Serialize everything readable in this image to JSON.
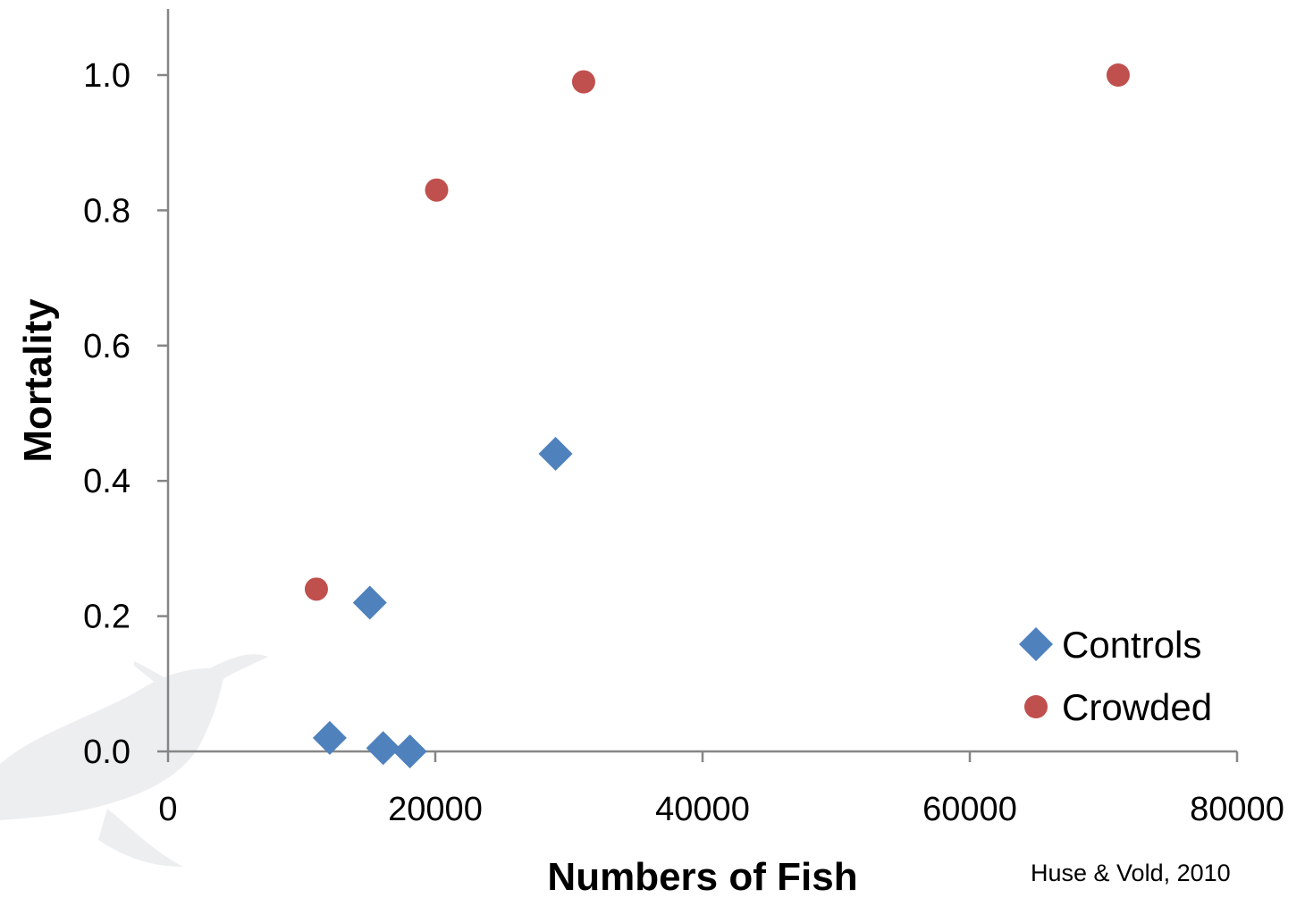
{
  "chart_data": {
    "type": "scatter",
    "title": "",
    "xlabel": "Numbers of Fish",
    "ylabel": "Mortality",
    "xlim": [
      0,
      80000
    ],
    "ylim": [
      0,
      1.1
    ],
    "x_ticks": [
      "0",
      "20000",
      "40000",
      "60000",
      "80000"
    ],
    "y_ticks": [
      "0.0",
      "0.2",
      "0.4",
      "0.6",
      "0.8",
      "1.0"
    ],
    "grid": false,
    "legend_position": "bottom-right",
    "series": [
      {
        "name": "Controls",
        "marker": "diamond",
        "color": "#4F81BD",
        "points": [
          {
            "x": 12100,
            "y": 0.02
          },
          {
            "x": 15100,
            "y": 0.22
          },
          {
            "x": 16100,
            "y": 0.005
          },
          {
            "x": 18100,
            "y": 0.0
          },
          {
            "x": 29000,
            "y": 0.44
          }
        ]
      },
      {
        "name": "Crowded",
        "marker": "circle",
        "color": "#C0504D",
        "points": [
          {
            "x": 11100,
            "y": 0.24
          },
          {
            "x": 20100,
            "y": 0.83
          },
          {
            "x": 31100,
            "y": 0.99
          },
          {
            "x": 71100,
            "y": 1.0
          }
        ]
      }
    ],
    "annotations": [
      "Huse & Vold, 2010"
    ]
  }
}
